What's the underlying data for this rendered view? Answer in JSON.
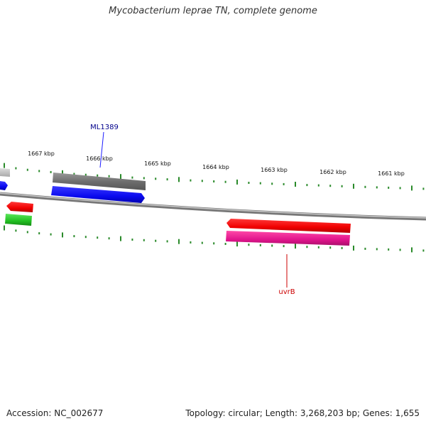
{
  "title": "Mycobacterium leprae TN, complete genome",
  "footer": {
    "accession": "Accession: NC_002677",
    "summary": "Topology: circular; Length: 3,268,203 bp; Genes: 1,655"
  },
  "ticks": {
    "upper_labels": [
      "1667 kbp",
      "1666 kbp",
      "1665 kbp",
      "1664 kbp",
      "1663 kbp",
      "1662 kbp",
      "1661 kbp"
    ],
    "color": "#2a8a2a"
  },
  "gene_labels": {
    "ml1389": "ML1389",
    "uvrb": "uvrB"
  },
  "colors": {
    "gray_feature": "#6e6e6e",
    "light_gray_feature": "#bdbdbd",
    "blue_feature": "#0a0aef",
    "red_feature": "#f00000",
    "green_feature": "#22c022",
    "magenta_feature": "#e0148c",
    "backbone": "#8a8a8a",
    "ml1389_label": "#00008b",
    "uvrb_label": "#cc0000"
  }
}
